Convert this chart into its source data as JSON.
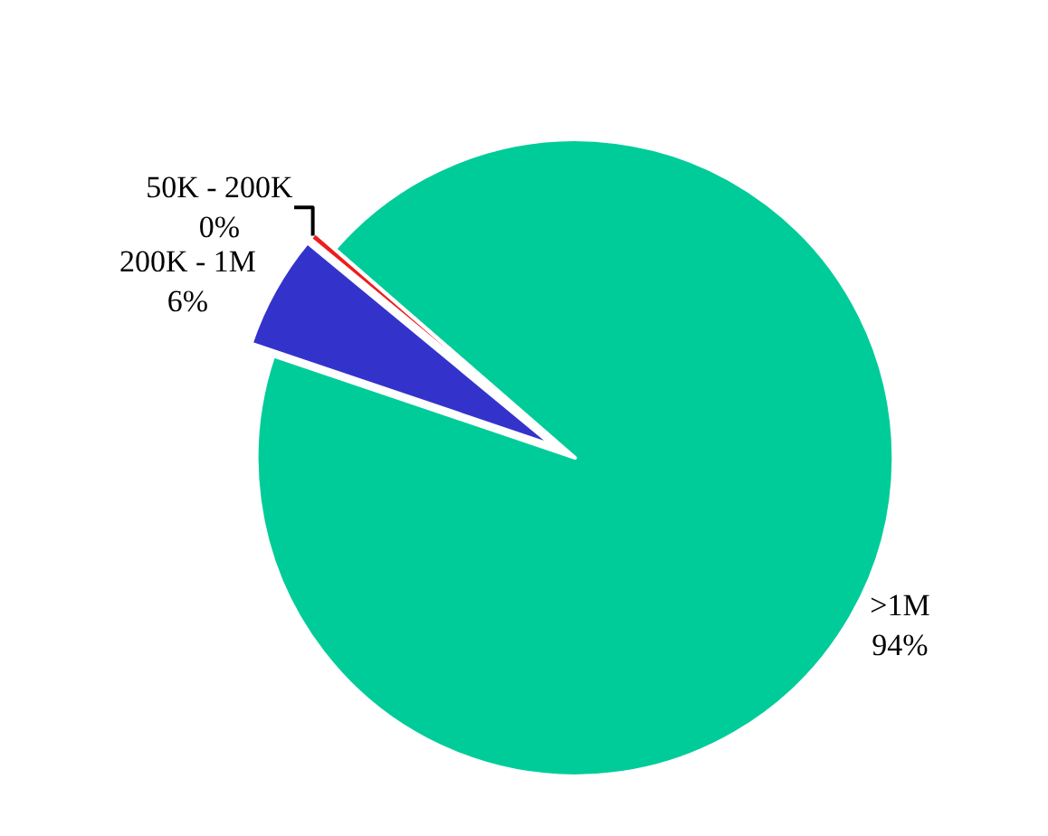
{
  "chart_data": {
    "type": "pie",
    "categories": [
      ">1M",
      "200K - 1M",
      "50K - 200K"
    ],
    "values": [
      93.8,
      5.8,
      0.4
    ],
    "value_labels": [
      "94%",
      "6%",
      "0%"
    ],
    "colors": [
      "#00cc99",
      "#3333cc",
      "#ee1c1c"
    ],
    "legend": false
  }
}
